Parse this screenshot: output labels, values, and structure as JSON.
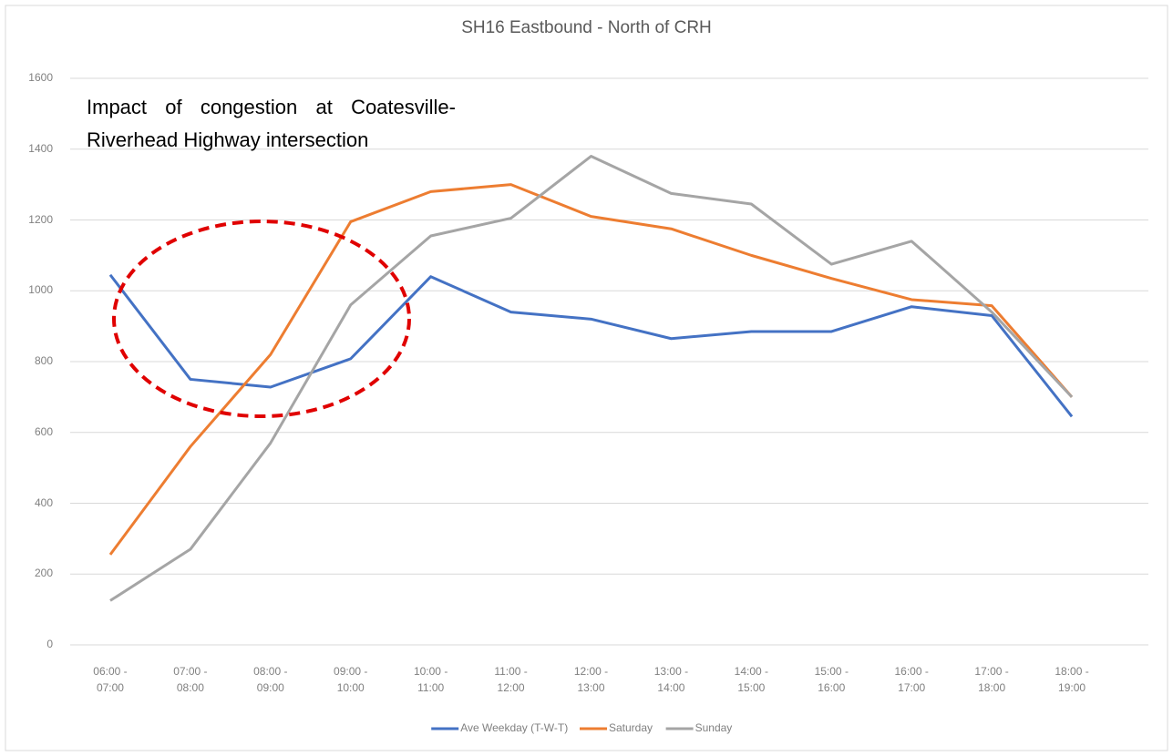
{
  "chart_data": {
    "type": "line",
    "title": "SH16 Eastbound - North of CRH",
    "annotation": "Impact of congestion at Coatesville-Riverhead Highway intersection",
    "categories": [
      "06:00 - 07:00",
      "07:00 - 08:00",
      "08:00 - 09:00",
      "09:00 - 10:00",
      "10:00 - 11:00",
      "11:00 - 12:00",
      "12:00 - 13:00",
      "13:00 - 14:00",
      "14:00 - 15:00",
      "15:00 - 16:00",
      "16:00 - 17:00",
      "17:00 - 18:00",
      "18:00 - 19:00"
    ],
    "series": [
      {
        "name": "Ave Weekday (T-W-T)",
        "color": "#4472c4",
        "values": [
          1045,
          750,
          728,
          808,
          1040,
          940,
          920,
          865,
          885,
          885,
          955,
          930,
          645
        ]
      },
      {
        "name": "Saturday",
        "color": "#ed7d31",
        "values": [
          255,
          560,
          820,
          1195,
          1280,
          1300,
          1210,
          1175,
          1100,
          1035,
          975,
          958,
          700
        ]
      },
      {
        "name": "Sunday",
        "color": "#a5a5a5",
        "values": [
          125,
          270,
          570,
          960,
          1155,
          1205,
          1380,
          1275,
          1245,
          1075,
          1140,
          940,
          700
        ]
      }
    ],
    "ylim": [
      0,
      1600
    ],
    "yticks": [
      0,
      200,
      400,
      600,
      800,
      1000,
      1200,
      1400,
      1600
    ],
    "grid": true,
    "legend": "bottom"
  }
}
